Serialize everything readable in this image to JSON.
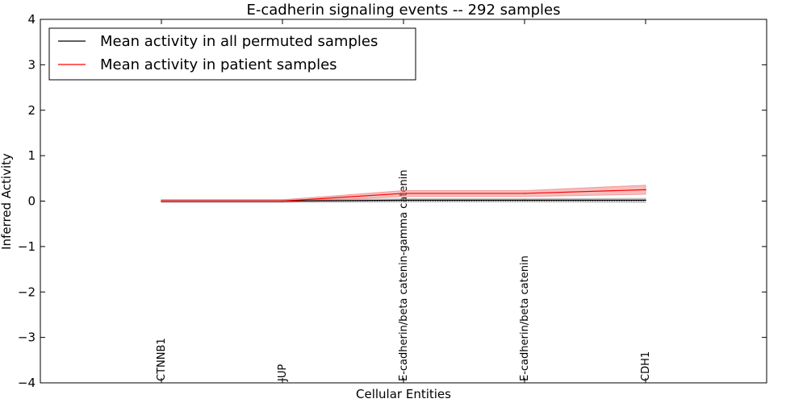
{
  "chart_data": {
    "type": "line",
    "title": "E-cadherin signaling events -- 292 samples",
    "xlabel": "Cellular Entities",
    "ylabel": "Inferred Activity",
    "categories": [
      "CTNNB1",
      "JUP",
      "E-cadherin/beta catenin-gamma catenin",
      "E-cadherin/beta catenin",
      "CDH1"
    ],
    "ylim": [
      -4,
      4
    ],
    "yticks": [
      {
        "value": 4,
        "label": "4"
      },
      {
        "value": 3,
        "label": "3"
      },
      {
        "value": 2,
        "label": "2"
      },
      {
        "value": 1,
        "label": "1"
      },
      {
        "value": 0,
        "label": "0"
      },
      {
        "value": -1,
        "label": "−1"
      },
      {
        "value": -2,
        "label": "−2"
      },
      {
        "value": -3,
        "label": "−3"
      },
      {
        "value": -4,
        "label": "−4"
      }
    ],
    "grid": false,
    "legend_position": "top-left",
    "series": [
      {
        "name": "Mean activity in all permuted samples",
        "color": "#000000",
        "band_color": "#aaaaaa",
        "values": [
          0.0,
          0.0,
          0.02,
          0.02,
          0.02
        ],
        "lower": [
          -0.03,
          -0.03,
          -0.02,
          -0.02,
          -0.03
        ],
        "upper": [
          0.03,
          0.03,
          0.05,
          0.05,
          0.06
        ]
      },
      {
        "name": "Mean activity in patient samples",
        "color": "#ff0000",
        "band_color": "#f08080",
        "values": [
          0.0,
          0.0,
          0.17,
          0.17,
          0.25
        ],
        "lower": [
          -0.02,
          -0.02,
          0.1,
          0.1,
          0.15
        ],
        "upper": [
          0.03,
          0.03,
          0.23,
          0.23,
          0.35
        ]
      }
    ],
    "zero_line": {
      "style": "dotted",
      "color": "#000000"
    }
  }
}
